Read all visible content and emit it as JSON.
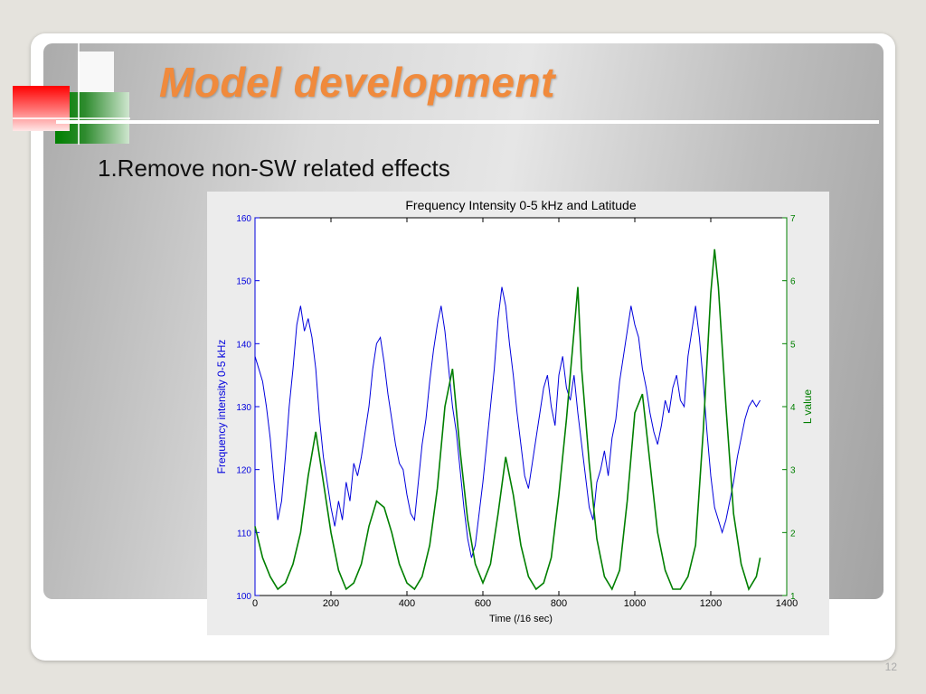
{
  "slide": {
    "title": "Model development",
    "bullet": "1.Remove non-SW related effects",
    "page_number": "12"
  },
  "colors": {
    "title": "#f08a3c",
    "series_left": "#0000dd",
    "series_right": "#007f00",
    "deco_red": "#ff0000",
    "deco_green": "#008000"
  },
  "chart_data": {
    "type": "line",
    "title": "Frequency Intensity 0-5 kHz and Latitude",
    "xlabel": "Time (/16 sec)",
    "ylabel": "Frequency intensity 0-5 kHz",
    "y2label": "L value",
    "xlim": [
      0,
      1400
    ],
    "ylim": [
      100,
      160
    ],
    "y2lim": [
      1,
      7
    ],
    "xticks": [
      "0",
      "200",
      "400",
      "600",
      "800",
      "1000",
      "1200",
      "1400"
    ],
    "yticks": [
      "100",
      "110",
      "120",
      "130",
      "140",
      "150",
      "160"
    ],
    "y2ticks": [
      "1",
      "2",
      "3",
      "4",
      "5",
      "6",
      "7"
    ],
    "grid": false,
    "series": [
      {
        "axis": "left",
        "color": "#0000dd",
        "x": [
          0,
          10,
          20,
          30,
          40,
          50,
          60,
          70,
          80,
          90,
          100,
          110,
          120,
          130,
          140,
          150,
          160,
          170,
          180,
          190,
          200,
          210,
          220,
          230,
          240,
          250,
          260,
          270,
          280,
          290,
          300,
          310,
          320,
          330,
          340,
          350,
          360,
          370,
          380,
          390,
          400,
          410,
          420,
          430,
          440,
          450,
          460,
          470,
          480,
          490,
          500,
          510,
          520,
          530,
          540,
          550,
          560,
          570,
          580,
          590,
          600,
          610,
          620,
          630,
          640,
          650,
          660,
          670,
          680,
          690,
          700,
          710,
          720,
          730,
          740,
          750,
          760,
          770,
          780,
          790,
          800,
          810,
          820,
          830,
          840,
          850,
          860,
          870,
          880,
          890,
          900,
          910,
          920,
          930,
          940,
          950,
          960,
          970,
          980,
          990,
          1000,
          1010,
          1020,
          1030,
          1040,
          1050,
          1060,
          1070,
          1080,
          1090,
          1100,
          1110,
          1120,
          1130,
          1140,
          1150,
          1160,
          1170,
          1180,
          1190,
          1200,
          1210,
          1220,
          1230,
          1240,
          1250,
          1260,
          1270,
          1280,
          1290,
          1300,
          1310,
          1320,
          1330
        ],
        "y": [
          138,
          136,
          134,
          130,
          125,
          118,
          112,
          115,
          122,
          130,
          136,
          143,
          146,
          142,
          144,
          141,
          136,
          128,
          122,
          118,
          114,
          111,
          115,
          112,
          118,
          115,
          121,
          119,
          122,
          126,
          130,
          136,
          140,
          141,
          137,
          132,
          128,
          124,
          121,
          120,
          116,
          113,
          112,
          118,
          124,
          128,
          134,
          139,
          143,
          146,
          142,
          136,
          130,
          126,
          120,
          114,
          109,
          106,
          108,
          113,
          118,
          124,
          130,
          136,
          144,
          149,
          146,
          140,
          135,
          129,
          124,
          119,
          117,
          121,
          125,
          129,
          133,
          135,
          130,
          127,
          135,
          138,
          133,
          131,
          135,
          129,
          124,
          119,
          114,
          112,
          118,
          120,
          123,
          119,
          125,
          128,
          134,
          138,
          142,
          146,
          143,
          141,
          136,
          133,
          129,
          126,
          124,
          127,
          131,
          129,
          133,
          135,
          131,
          130,
          138,
          142,
          146,
          141,
          134,
          126,
          119,
          114,
          112,
          110,
          112,
          115,
          118,
          122,
          125,
          128,
          130,
          131,
          130,
          131
        ],
        "name": ""
      },
      {
        "axis": "right",
        "color": "#007f00",
        "x": [
          0,
          20,
          40,
          60,
          80,
          100,
          120,
          140,
          160,
          180,
          200,
          220,
          240,
          260,
          280,
          300,
          320,
          340,
          360,
          380,
          400,
          420,
          440,
          460,
          480,
          500,
          520,
          540,
          560,
          580,
          600,
          620,
          640,
          660,
          680,
          700,
          720,
          740,
          760,
          780,
          800,
          820,
          840,
          850,
          860,
          880,
          900,
          920,
          940,
          960,
          980,
          1000,
          1020,
          1040,
          1060,
          1080,
          1100,
          1120,
          1140,
          1160,
          1180,
          1200,
          1210,
          1220,
          1240,
          1260,
          1280,
          1300,
          1320,
          1330
        ],
        "y": [
          2.1,
          1.6,
          1.3,
          1.1,
          1.2,
          1.5,
          2.0,
          2.9,
          3.6,
          2.8,
          2.0,
          1.4,
          1.1,
          1.2,
          1.5,
          2.1,
          2.5,
          2.4,
          2.0,
          1.5,
          1.2,
          1.1,
          1.3,
          1.8,
          2.7,
          4.0,
          4.6,
          3.3,
          2.2,
          1.5,
          1.2,
          1.5,
          2.3,
          3.2,
          2.6,
          1.8,
          1.3,
          1.1,
          1.2,
          1.6,
          2.6,
          3.8,
          5.2,
          5.9,
          4.6,
          3.1,
          1.9,
          1.3,
          1.1,
          1.4,
          2.5,
          3.9,
          4.2,
          3.1,
          2.0,
          1.4,
          1.1,
          1.1,
          1.3,
          1.8,
          3.6,
          5.8,
          6.5,
          5.9,
          4.0,
          2.3,
          1.5,
          1.1,
          1.3,
          1.6
        ],
        "name": ""
      }
    ]
  }
}
